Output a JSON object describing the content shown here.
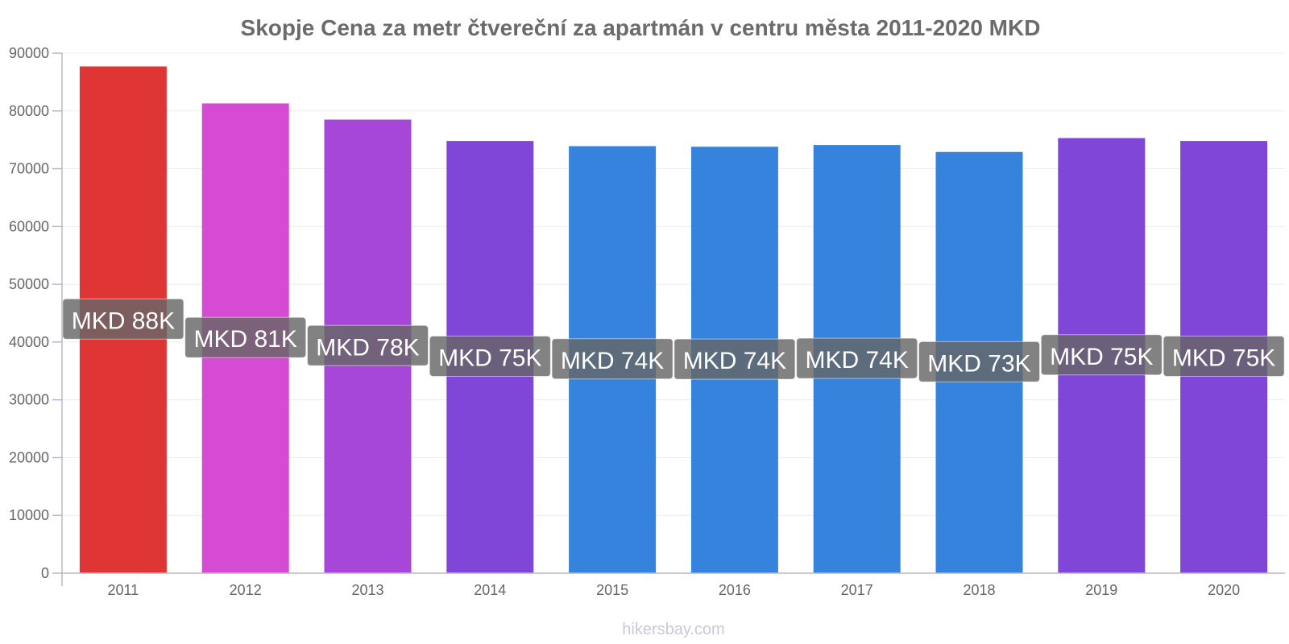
{
  "chart_data": {
    "type": "bar",
    "title": "Skopje Cena za metr čtvereční za apartmán v centru města 2011-2020 MKD",
    "xlabel": "",
    "ylabel": "",
    "ylim": [
      0,
      90000
    ],
    "yticks": [
      0,
      10000,
      20000,
      30000,
      40000,
      50000,
      60000,
      70000,
      80000,
      90000
    ],
    "categories": [
      "2011",
      "2012",
      "2013",
      "2014",
      "2015",
      "2016",
      "2017",
      "2018",
      "2019",
      "2020"
    ],
    "values": [
      87700,
      81300,
      78500,
      74800,
      73900,
      73800,
      74100,
      72900,
      75300,
      74800
    ],
    "labels": [
      "MKD 88K",
      "MKD 81K",
      "MKD 78K",
      "MKD 75K",
      "MKD 74K",
      "MKD 74K",
      "MKD 74K",
      "MKD 73K",
      "MKD 75K",
      "MKD 75K"
    ],
    "colors": [
      "#e03535",
      "#d64bd4",
      "#a747d9",
      "#8046d8",
      "#3683dd",
      "#3683dd",
      "#3683dd",
      "#3683dd",
      "#8046d8",
      "#8046d8"
    ],
    "label_bg": "#666666",
    "grid": true,
    "legend": "none"
  },
  "watermark": "hikersbay.com"
}
